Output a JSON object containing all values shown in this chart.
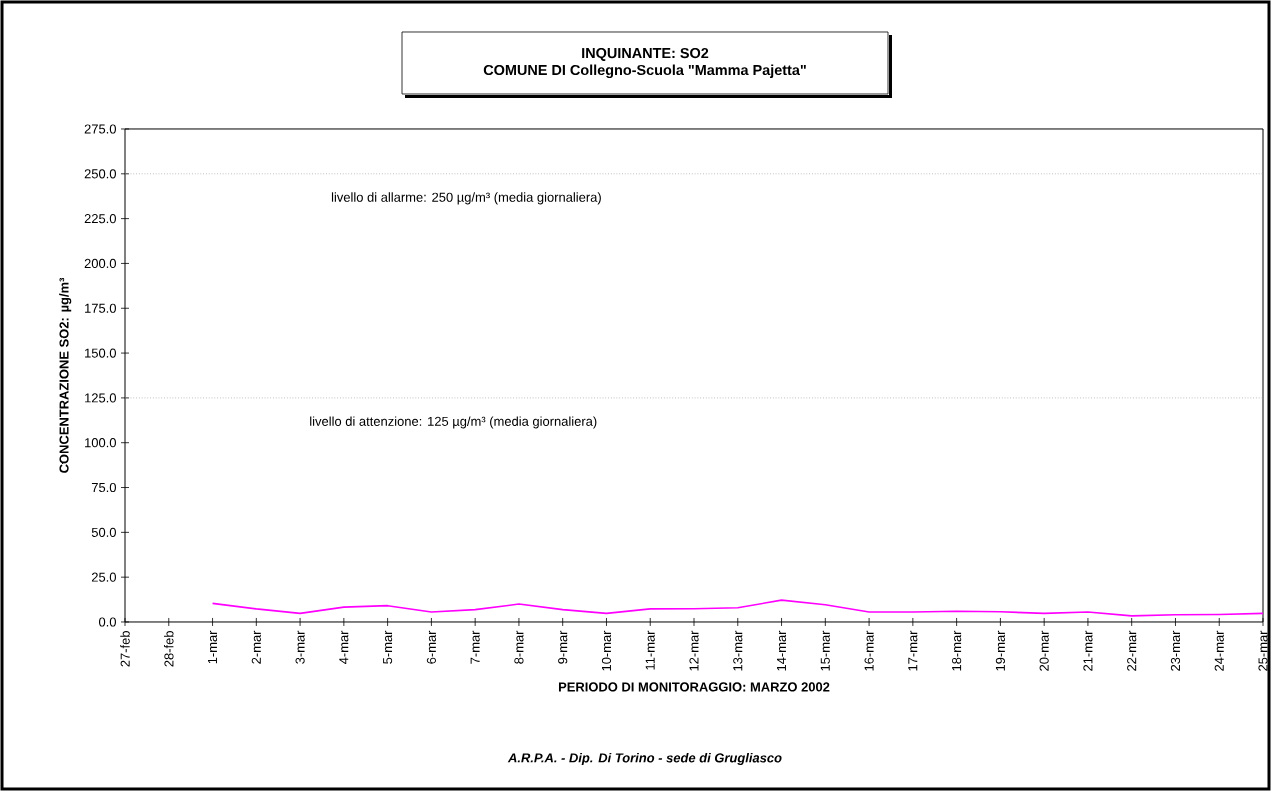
{
  "chart_data": {
    "type": "line",
    "title": "INQUINANTE: SO2",
    "subtitle": "COMUNE DI Collegno-Scuola \"Mamma Pajetta\"",
    "xlabel": "PERIODO DI MONITORAGGIO: MARZO 2002",
    "ylabel": "CONCENTRAZIONE SO2:  µg/m³",
    "categories": [
      "27-feb",
      "28-feb",
      "1-mar",
      "2-mar",
      "3-mar",
      "4-mar",
      "5-mar",
      "6-mar",
      "7-mar",
      "8-mar",
      "9-mar",
      "10-mar",
      "11-mar",
      "12-mar",
      "13-mar",
      "14-mar",
      "15-mar",
      "16-mar",
      "17-mar",
      "18-mar",
      "19-mar",
      "20-mar",
      "21-mar",
      "22-mar",
      "23-mar",
      "24-mar",
      "25-mar"
    ],
    "series": [
      {
        "color": "#ff00ff",
        "values": [
          null,
          null,
          10.4,
          7.3,
          4.8,
          8.3,
          9.1,
          5.6,
          6.9,
          10.0,
          6.9,
          4.8,
          7.3,
          7.4,
          7.9,
          12.2,
          9.6,
          5.6,
          5.6,
          6.0,
          5.7,
          4.8,
          5.6,
          3.4,
          4.0,
          4.2,
          4.8
        ]
      }
    ],
    "ylim": [
      0,
      275
    ],
    "yticks": [
      {
        "value": 0,
        "label": "0.0"
      },
      {
        "value": 25,
        "label": "25.0"
      },
      {
        "value": 50,
        "label": "50.0"
      },
      {
        "value": 75,
        "label": "75.0"
      },
      {
        "value": 100,
        "label": "100.0"
      },
      {
        "value": 125,
        "label": "125.0"
      },
      {
        "value": 150,
        "label": "150.0"
      },
      {
        "value": 175,
        "label": "175.0"
      },
      {
        "value": 200,
        "label": "200.0"
      },
      {
        "value": 225,
        "label": "225.0"
      },
      {
        "value": 250,
        "label": "250.0"
      },
      {
        "value": 275,
        "label": "275.0"
      }
    ],
    "ref_lines": [
      {
        "axis": "y",
        "value": 250,
        "label": "livello di allarme: 250 µg/m³ (media giornaliera)",
        "color": "#a0a0a0",
        "line_style": "dotted"
      },
      {
        "axis": "y",
        "value": 125,
        "label": "livello di attenzione: 125 µg/m³ (media giornaliera)",
        "color": "#a0a0a0",
        "line_style": "dotted"
      }
    ],
    "annotations": [
      "A.R.P.A. - Dip. Di Torino - sede di Grugliasco"
    ],
    "grid": false,
    "legend": false,
    "marker": "none",
    "line_style": "solid"
  }
}
